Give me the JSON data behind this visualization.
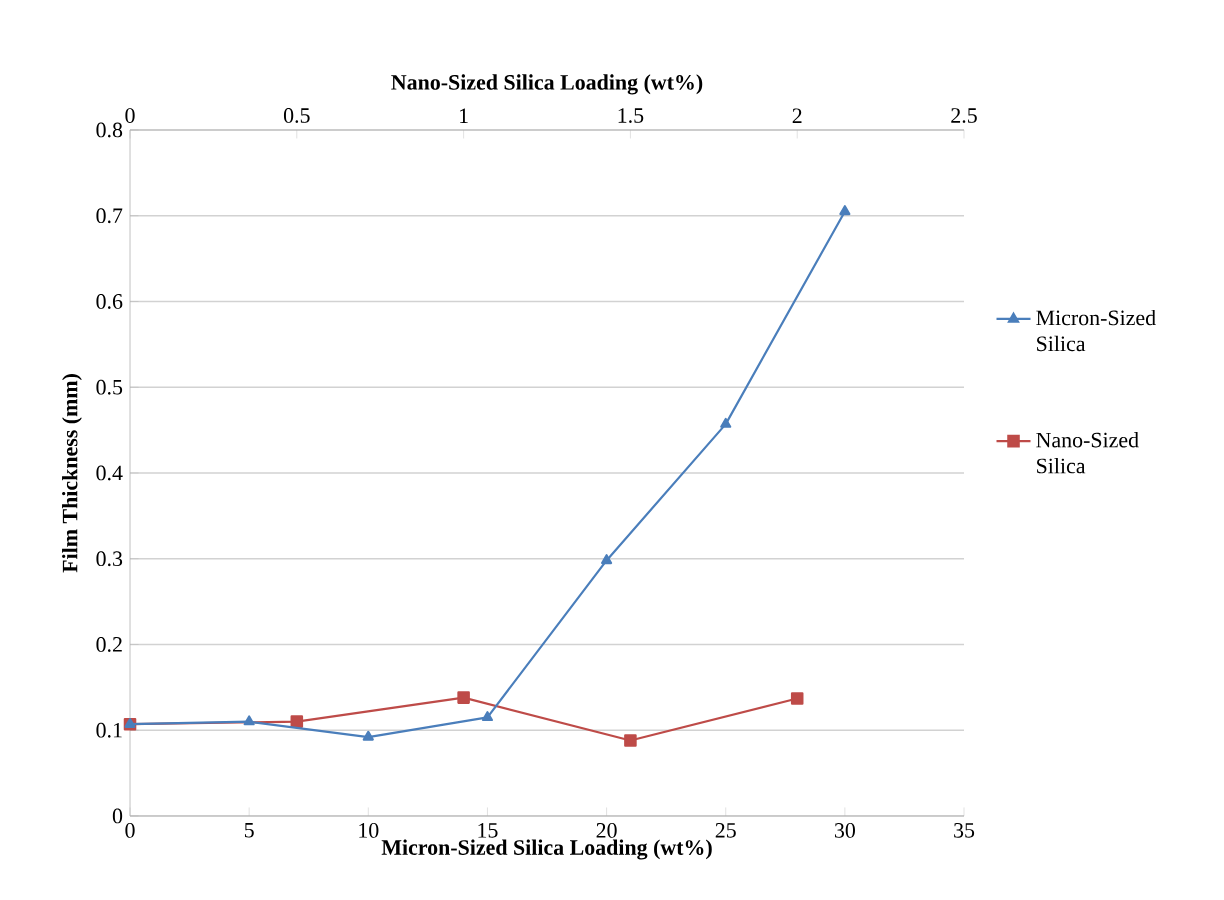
{
  "chart_data": {
    "type": "line",
    "xlabel": "Micron-Sized Silica Loading (wt%)",
    "x2label": "Nano-Sized Silica Loading (wt%)",
    "ylabel": "Film Thickness (mm)",
    "xlim": [
      0,
      35
    ],
    "xticks": [
      0,
      5,
      10,
      15,
      20,
      25,
      30,
      35
    ],
    "x2lim": [
      0,
      2.5
    ],
    "x2ticks": [
      0,
      0.5,
      1,
      1.5,
      2,
      2.5
    ],
    "ylim": [
      0,
      0.8
    ],
    "yticks": [
      0,
      0.1,
      0.2,
      0.3,
      0.4,
      0.5,
      0.6,
      0.7,
      0.8
    ],
    "grid": "y",
    "legend": "right",
    "series": [
      {
        "name": "Micron-Sized Silica",
        "color": "#4a7ebb",
        "marker": "triangle",
        "x": [
          0,
          5,
          10,
          15,
          20,
          25,
          30
        ],
        "values": [
          0.107,
          0.11,
          0.092,
          0.115,
          0.298,
          0.457,
          0.705
        ]
      },
      {
        "name": "Nano-Sized Silica",
        "color": "#be4b48",
        "marker": "square",
        "axis": "x2",
        "x": [
          0,
          0.5,
          1,
          1.5,
          2
        ],
        "values": [
          0.107,
          0.11,
          0.138,
          0.088,
          0.137
        ]
      }
    ]
  }
}
